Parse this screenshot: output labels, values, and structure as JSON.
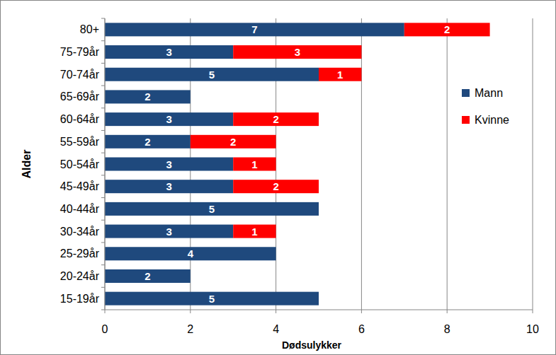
{
  "chart_data": {
    "type": "bar",
    "orientation": "horizontal",
    "stacked": true,
    "data_labels": true,
    "grid": true,
    "legend": "right",
    "x_label": "Dødsulykker",
    "y_label": "Alder",
    "categories": [
      "15-19år",
      "20-24år",
      "25-29år",
      "30-34år",
      "40-44år",
      "45-49år",
      "50-54år",
      "55-59år",
      "60-64år",
      "65-69år",
      "70-74år",
      "75-79år",
      "80+"
    ],
    "series": [
      {
        "name": "Mann",
        "color": "#1f497d",
        "values": [
          5,
          2,
          4,
          3,
          5,
          3,
          3,
          2,
          3,
          2,
          5,
          3,
          7
        ]
      },
      {
        "name": "Kvinne",
        "color": "#ff0000",
        "values": [
          null,
          null,
          null,
          1,
          null,
          2,
          1,
          2,
          2,
          null,
          1,
          3,
          2
        ]
      }
    ],
    "xlim": [
      0,
      10
    ],
    "xticks": [
      0,
      2,
      4,
      6,
      8,
      10
    ]
  }
}
